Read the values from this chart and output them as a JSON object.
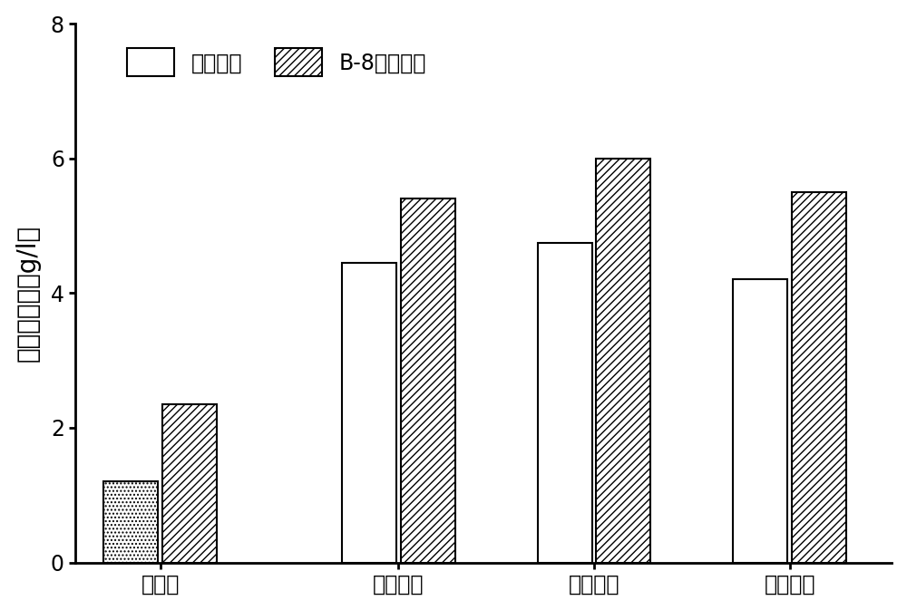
{
  "categories": [
    "未处理",
    "实施例一",
    "实施例二",
    "实施例三"
  ],
  "ammonia_values": [
    1.2,
    4.45,
    4.75,
    4.2
  ],
  "b8_values": [
    2.35,
    5.4,
    6.0,
    5.5
  ],
  "ylabel": "还原糖浓度（g/l）",
  "ylim": [
    0,
    8
  ],
  "yticks": [
    0,
    2,
    4,
    6,
    8
  ],
  "bar_width": 0.32,
  "ammonia_color": "#ffffff",
  "b8_hatch": "////",
  "untreated_hatch": "....",
  "legend_ammonia": "氨法处理",
  "legend_b8": "B-8强化处理",
  "edge_color": "#000000",
  "background_color": "#ffffff",
  "label_fontsize": 20,
  "tick_fontsize": 17,
  "legend_fontsize": 17
}
